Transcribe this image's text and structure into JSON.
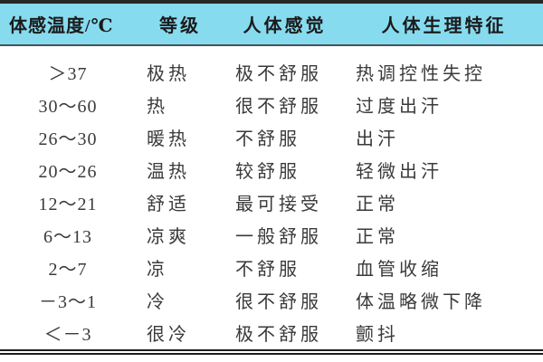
{
  "table": {
    "title_semantic": "perceived-temperature-comfort-table",
    "columns": [
      "体感温度/℃",
      "等级",
      "人体感觉",
      "人体生理特征"
    ],
    "rows": [
      [
        "＞37",
        "极热",
        "极不舒服",
        "热调控性失控"
      ],
      [
        "30～60",
        "热",
        "很不舒服",
        "过度出汗"
      ],
      [
        "26～30",
        "暖热",
        "不舒服",
        "出汗"
      ],
      [
        "20～26",
        "温热",
        "较舒服",
        "轻微出汗"
      ],
      [
        "12～21",
        "舒适",
        "最可接受",
        "正常"
      ],
      [
        "6～13",
        "凉爽",
        "一般舒服",
        "正常"
      ],
      [
        "2～7",
        "凉",
        "不舒服",
        "血管收缩"
      ],
      [
        "－3～1",
        "冷",
        "很不舒服",
        "体温略微下降"
      ],
      [
        "＜－3",
        "很冷",
        "极不舒服",
        "颤抖"
      ]
    ],
    "colors": {
      "header_bg": "#87dbef",
      "top_rule": "#272727",
      "header_underline": "#46525a",
      "bottom_rule": "#1d1d1d",
      "header_text": "#1b1b1b",
      "body_text": "#3a3a3a"
    }
  }
}
